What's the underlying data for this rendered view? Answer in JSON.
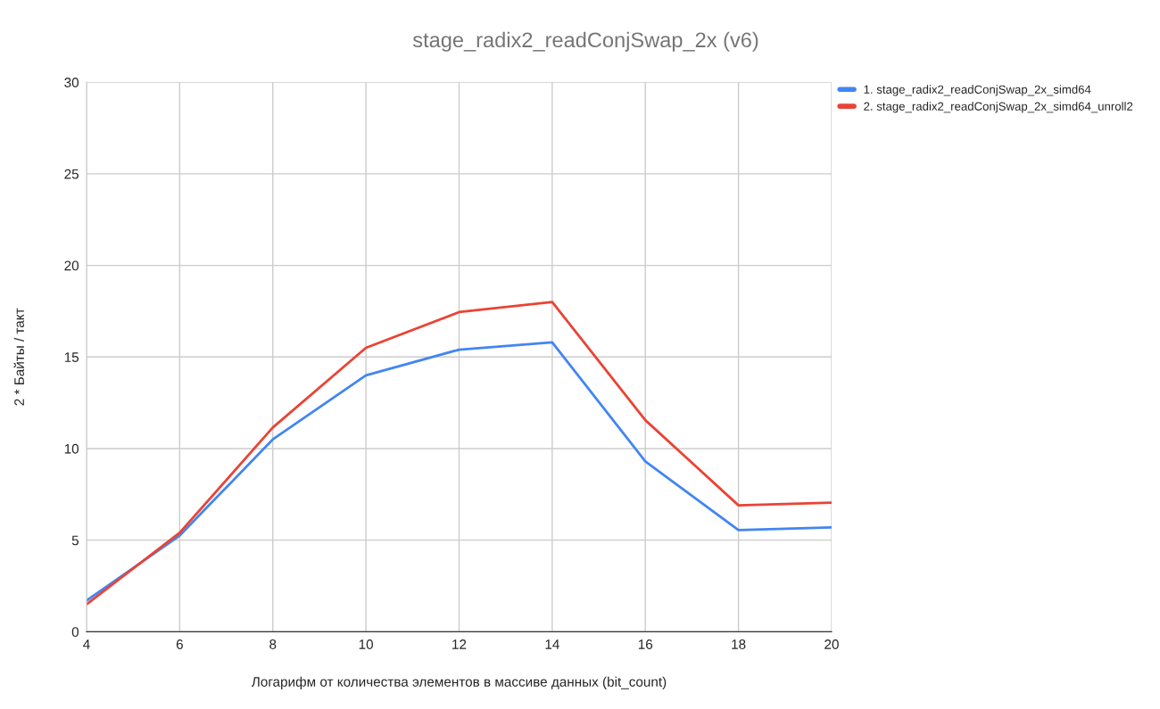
{
  "chart_data": {
    "type": "line",
    "title": "stage_radix2_readConjSwap_2x (v6)",
    "xlabel": "Логарифм от количества элементов в массиве данных (bit_count)",
    "ylabel": "2 * Байты / такт",
    "x": [
      4,
      6,
      8,
      10,
      12,
      14,
      16,
      18,
      20
    ],
    "series": [
      {
        "name": "1. stage_radix2_readConjSwap_2x_simd64",
        "color": "#4285f4",
        "values": [
          1.7,
          5.25,
          10.5,
          14.0,
          15.4,
          15.8,
          9.3,
          5.55,
          5.7
        ]
      },
      {
        "name": "2. stage_radix2_readConjSwap_2x_simd64_unroll2",
        "color": "#ea4335",
        "values": [
          1.5,
          5.4,
          11.15,
          15.5,
          17.45,
          18.0,
          11.55,
          6.9,
          7.05
        ]
      }
    ],
    "xlim": [
      4,
      20
    ],
    "xticks": [
      4,
      6,
      8,
      10,
      12,
      14,
      16,
      18,
      20
    ],
    "ylim": [
      0,
      30
    ],
    "yticks": [
      0,
      5,
      10,
      15,
      20,
      25,
      30
    ],
    "grid": true,
    "legend": "top right",
    "marker": "none",
    "line_style": "solid"
  }
}
